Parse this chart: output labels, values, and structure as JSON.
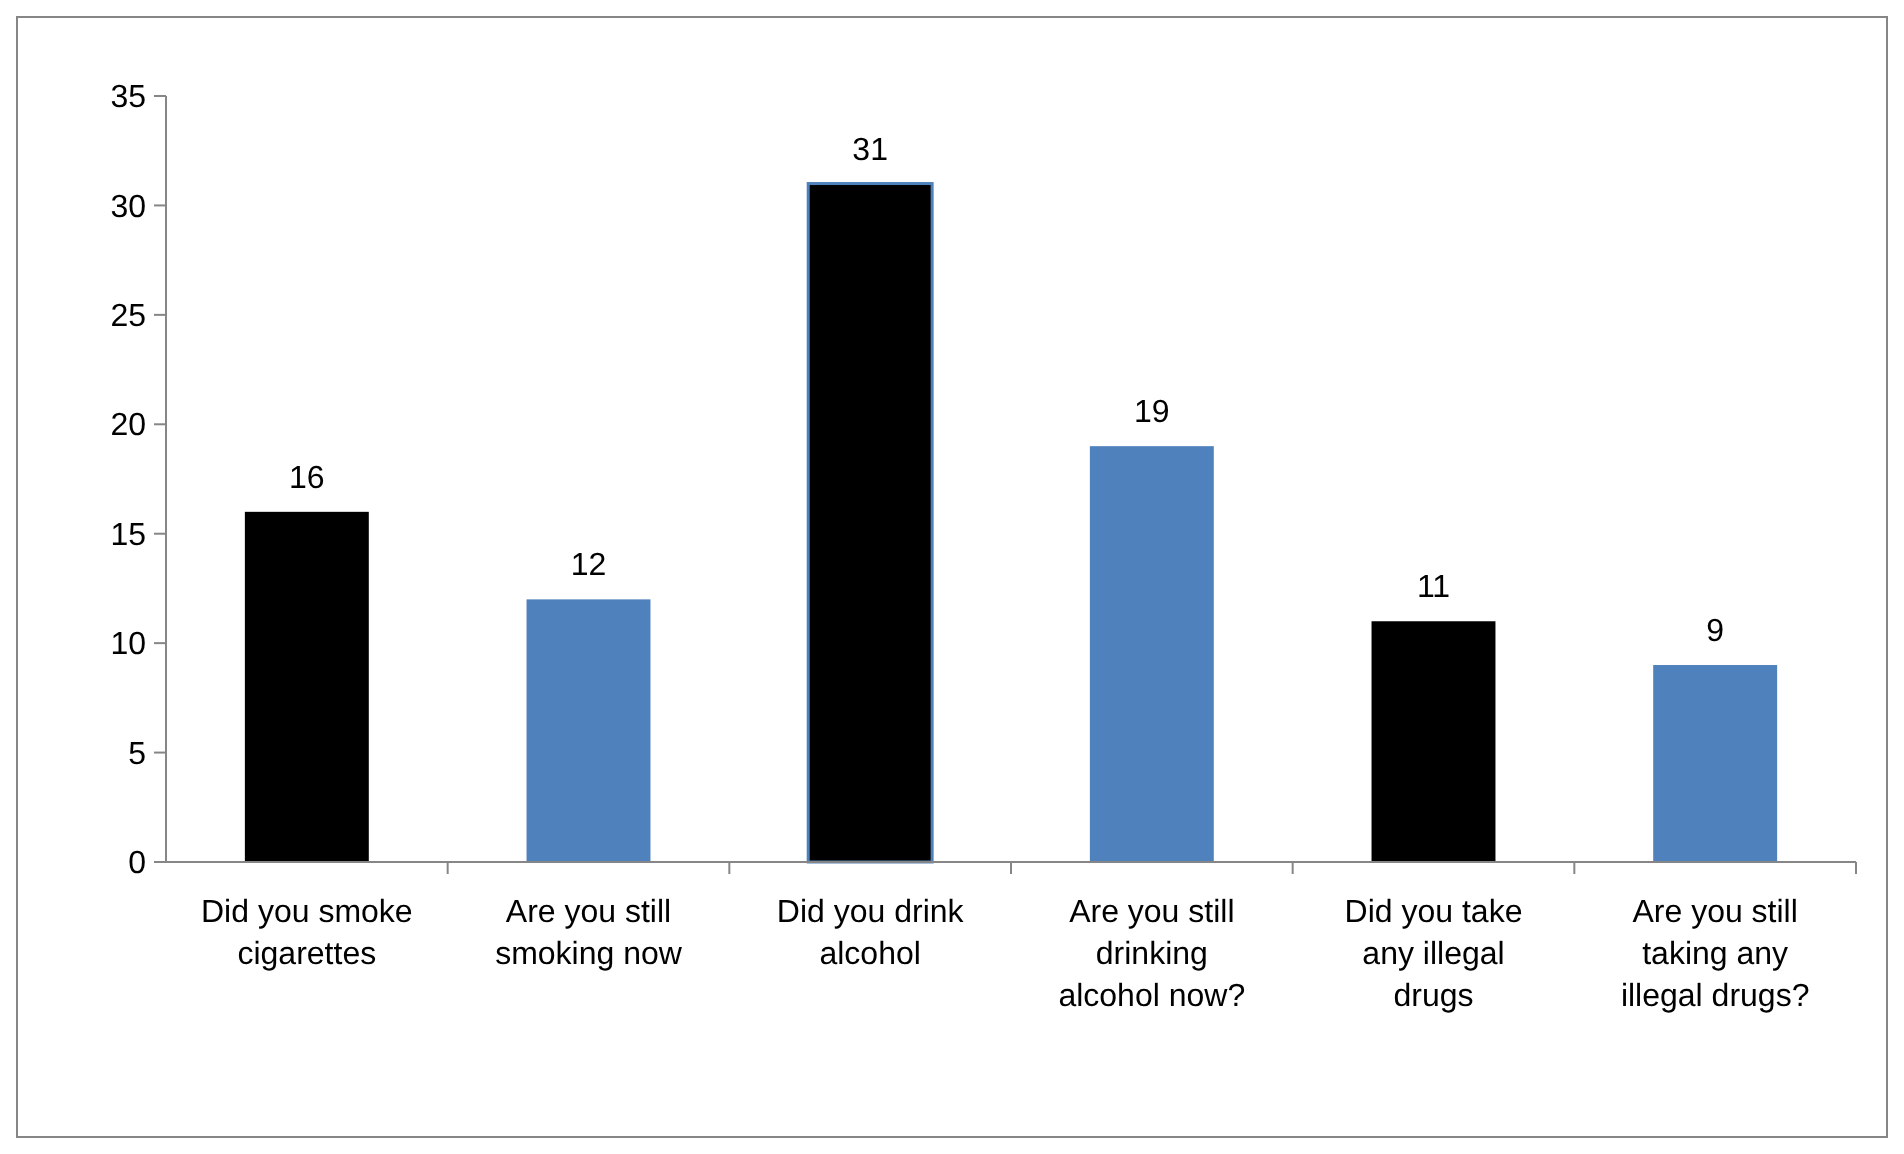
{
  "chart_data": {
    "type": "bar",
    "categories": [
      "Did you smoke cigarettes",
      "Are you still smoking now",
      "Did you drink alcohol",
      "Are you still drinking alcohol now?",
      "Did you take any illegal drugs",
      "Are you still taking any illegal drugs?"
    ],
    "values": [
      16,
      12,
      31,
      19,
      11,
      9
    ],
    "colors": [
      "#000000",
      "#4f81bd",
      "#000000",
      "#4f81bd",
      "#000000",
      "#4f81bd"
    ],
    "ylim": [
      0,
      35
    ],
    "yticks": [
      0,
      5,
      10,
      15,
      20,
      25,
      30,
      35
    ],
    "grid": false,
    "data_labels": true
  }
}
